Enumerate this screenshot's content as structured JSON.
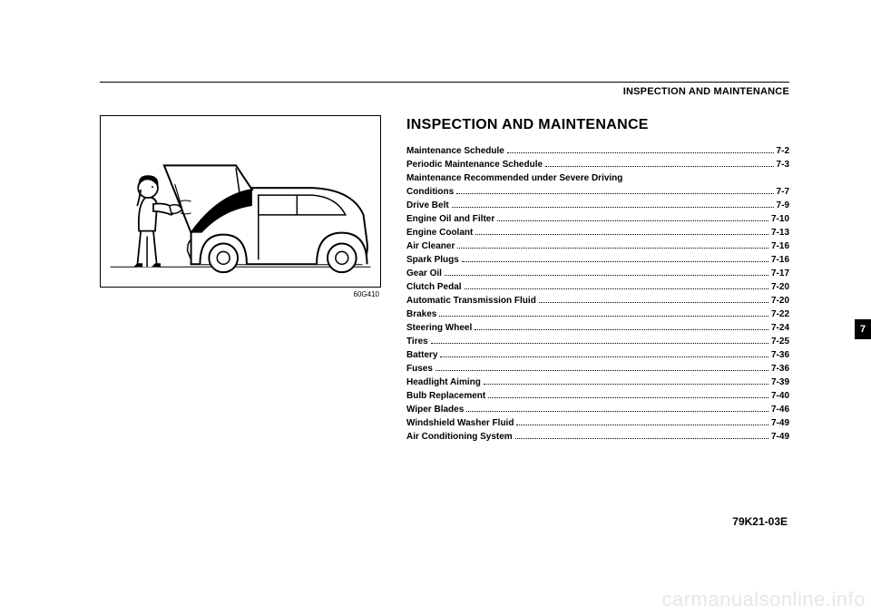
{
  "header": {
    "running_title": "INSPECTION AND MAINTENANCE"
  },
  "figure": {
    "caption": "60G410"
  },
  "section": {
    "title": "INSPECTION AND MAINTENANCE"
  },
  "toc": {
    "items": [
      {
        "label": "Maintenance Schedule",
        "page": "7-2"
      },
      {
        "label": "Periodic Maintenance Schedule",
        "page": "7-3"
      },
      {
        "label": "Maintenance Recommended under Severe Driving",
        "page": ""
      },
      {
        "label": "Conditions",
        "page": "7-7"
      },
      {
        "label": "Drive Belt",
        "page": "7-9"
      },
      {
        "label": "Engine Oil and Filter",
        "page": "7-10"
      },
      {
        "label": "Engine Coolant",
        "page": "7-13"
      },
      {
        "label": "Air Cleaner",
        "page": "7-16"
      },
      {
        "label": "Spark Plugs",
        "page": "7-16"
      },
      {
        "label": "Gear Oil",
        "page": "7-17"
      },
      {
        "label": "Clutch Pedal",
        "page": "7-20"
      },
      {
        "label": "Automatic Transmission Fluid",
        "page": "7-20"
      },
      {
        "label": "Brakes",
        "page": "7-22"
      },
      {
        "label": "Steering Wheel",
        "page": "7-24"
      },
      {
        "label": "Tires",
        "page": "7-25"
      },
      {
        "label": "Battery",
        "page": "7-36"
      },
      {
        "label": "Fuses",
        "page": "7-36"
      },
      {
        "label": "Headlight Aiming",
        "page": "7-39"
      },
      {
        "label": "Bulb Replacement",
        "page": "7-40"
      },
      {
        "label": "Wiper Blades",
        "page": "7-46"
      },
      {
        "label": "Windshield Washer Fluid",
        "page": "7-49"
      },
      {
        "label": "Air Conditioning System",
        "page": "7-49"
      }
    ]
  },
  "side_tab": {
    "label": "7"
  },
  "footer": {
    "code": "79K21-03E"
  },
  "watermark": {
    "text": "carmanualsonline.info"
  }
}
